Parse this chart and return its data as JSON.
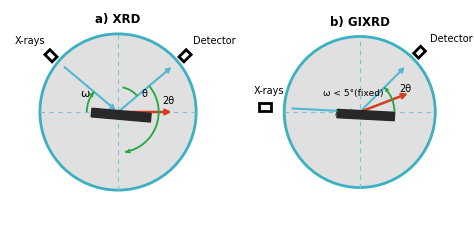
{
  "fig_width": 4.74,
  "fig_height": 2.26,
  "dpi": 100,
  "background": "#ffffff",
  "circle_edge_color": "#3ab0c0",
  "circle_fill": "#e0e0e0",
  "circle_lw": 2.0,
  "dashed_color": "#80c0d0",
  "title_a": "a) XRD",
  "title_b": "b) GIXRD",
  "xray_label": "X-rays",
  "detector_label": "Detector",
  "omega_label": "ω",
  "theta_label": "θ",
  "two_theta_label": "2θ",
  "omega_fixed_label": "ω < 5°(fixed)",
  "arrow_blue_color": "#50b8d0",
  "arrow_red_color": "#d04020",
  "arc_color": "#20a840",
  "sample_color": "#282828",
  "xrd_omega_deg": 40,
  "xrd_two_theta_deg": 80,
  "gixrd_omega_deg": 3,
  "gixrd_two_theta_deg": 45
}
